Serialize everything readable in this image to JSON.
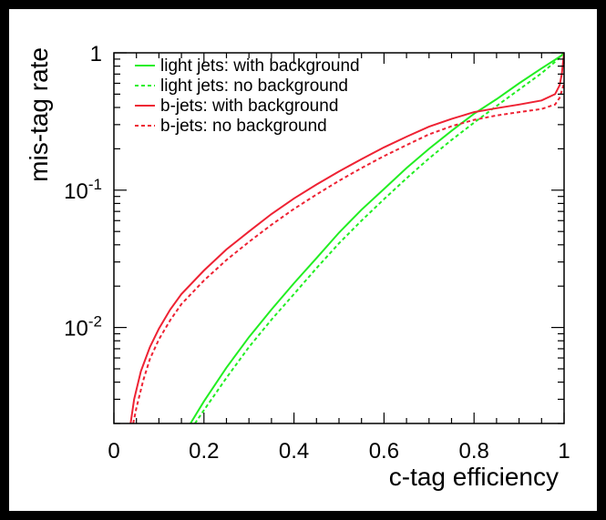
{
  "chart_data": {
    "type": "line",
    "title": "",
    "xlabel": "c-tag efficiency",
    "ylabel": "mis-tag rate",
    "xlim": [
      0,
      1
    ],
    "ylim": [
      0.002,
      1
    ],
    "yscale": "log",
    "grid": false,
    "legend_position": "top-left",
    "x_ticks": [
      {
        "value": 0,
        "label": "0"
      },
      {
        "value": 0.2,
        "label": "0.2"
      },
      {
        "value": 0.4,
        "label": "0.4"
      },
      {
        "value": 0.6,
        "label": "0.6"
      },
      {
        "value": 0.8,
        "label": "0.8"
      },
      {
        "value": 1,
        "label": "1"
      }
    ],
    "y_ticks": [
      {
        "value": 1,
        "base": "1",
        "exp": ""
      },
      {
        "value": 0.1,
        "base": "10",
        "exp": "-1"
      },
      {
        "value": 0.01,
        "base": "10",
        "exp": "-2"
      }
    ],
    "series": [
      {
        "name": "light jets: with background",
        "color": "#22ee22",
        "dash": "solid",
        "x": [
          0.17,
          0.2,
          0.25,
          0.3,
          0.35,
          0.4,
          0.45,
          0.5,
          0.55,
          0.6,
          0.65,
          0.7,
          0.75,
          0.8,
          0.85,
          0.9,
          0.95,
          0.98,
          0.995,
          1.0
        ],
        "y": [
          0.002,
          0.0029,
          0.0051,
          0.0085,
          0.0135,
          0.021,
          0.032,
          0.049,
          0.072,
          0.102,
          0.145,
          0.2,
          0.27,
          0.36,
          0.46,
          0.6,
          0.77,
          0.89,
          0.96,
          1.0
        ]
      },
      {
        "name": "light jets: no background",
        "color": "#22ee22",
        "dash": "dashed",
        "x": [
          0.18,
          0.2,
          0.25,
          0.3,
          0.35,
          0.4,
          0.45,
          0.5,
          0.55,
          0.6,
          0.65,
          0.7,
          0.75,
          0.8,
          0.85,
          0.9,
          0.95,
          0.98,
          1.0
        ],
        "y": [
          0.002,
          0.0025,
          0.0043,
          0.0072,
          0.0114,
          0.0175,
          0.027,
          0.041,
          0.06,
          0.086,
          0.122,
          0.17,
          0.232,
          0.31,
          0.41,
          0.54,
          0.71,
          0.86,
          1.0
        ]
      },
      {
        "name": "b-jets: with background",
        "color": "#ee2233",
        "dash": "solid",
        "x": [
          0.037,
          0.045,
          0.06,
          0.08,
          0.1,
          0.125,
          0.15,
          0.2,
          0.25,
          0.3,
          0.35,
          0.4,
          0.45,
          0.5,
          0.55,
          0.6,
          0.65,
          0.7,
          0.75,
          0.8,
          0.85,
          0.9,
          0.95,
          0.98,
          0.99,
          0.995,
          1.0
        ],
        "y": [
          0.002,
          0.003,
          0.0048,
          0.0072,
          0.0098,
          0.0135,
          0.0175,
          0.026,
          0.037,
          0.05,
          0.067,
          0.087,
          0.11,
          0.137,
          0.168,
          0.205,
          0.245,
          0.29,
          0.33,
          0.37,
          0.395,
          0.42,
          0.45,
          0.5,
          0.58,
          0.7,
          1.0
        ]
      },
      {
        "name": "b-jets: no background",
        "color": "#ee2233",
        "dash": "dashed",
        "x": [
          0.043,
          0.05,
          0.065,
          0.08,
          0.1,
          0.125,
          0.15,
          0.2,
          0.25,
          0.3,
          0.35,
          0.4,
          0.45,
          0.5,
          0.55,
          0.6,
          0.65,
          0.7,
          0.75,
          0.8,
          0.85,
          0.9,
          0.95,
          0.98,
          0.99,
          1.0
        ],
        "y": [
          0.002,
          0.0026,
          0.0041,
          0.0059,
          0.0082,
          0.0113,
          0.0148,
          0.022,
          0.031,
          0.042,
          0.056,
          0.073,
          0.093,
          0.117,
          0.145,
          0.177,
          0.213,
          0.255,
          0.292,
          0.325,
          0.35,
          0.37,
          0.39,
          0.42,
          0.47,
          0.6
        ]
      }
    ]
  }
}
